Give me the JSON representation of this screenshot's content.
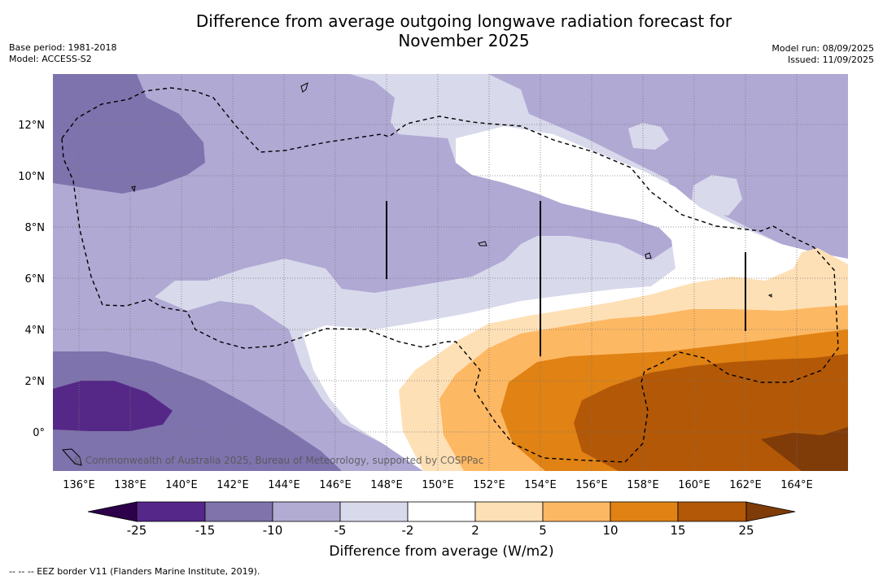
{
  "title_line1": "Difference from average outgoing longwave radiation forecast for",
  "title_line2": "November 2025",
  "meta_left": {
    "base_period": "Base period: 1981-2018",
    "model": "Model: ACCESS-S2"
  },
  "meta_right": {
    "model_run": "Model run: 08/09/2025",
    "issued": "Issued: 11/09/2025"
  },
  "x_ticks": [
    "136°E",
    "138°E",
    "140°E",
    "142°E",
    "144°E",
    "146°E",
    "148°E",
    "150°E",
    "152°E",
    "154°E",
    "156°E",
    "158°E",
    "160°E",
    "162°E",
    "164°E"
  ],
  "y_ticks": [
    "12°N",
    "10°N",
    "8°N",
    "6°N",
    "4°N",
    "2°N",
    "0°"
  ],
  "copyright": "© Commonwealth of Australia 2025, Bureau of Meteorology, supported by COSPPac",
  "colorbar": {
    "labels": [
      "-25",
      "-15",
      "-10",
      "-5",
      "-2",
      "2",
      "5",
      "10",
      "15",
      "25"
    ],
    "colors": [
      "#2d004b",
      "#542788",
      "#8073ac",
      "#b2abd2",
      "#d8daeb",
      "#ffffff",
      "#fee0b6",
      "#fdb863",
      "#e08214",
      "#b35806",
      "#7f3b08"
    ],
    "title": "Difference from average (W/m2)"
  },
  "footnote": "--  --  -- EEZ border V11 (Flanders Marine Institute, 2019)."
}
